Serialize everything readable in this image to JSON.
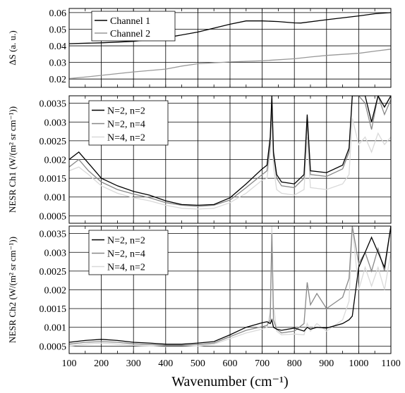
{
  "chart_data": [
    {
      "type": "line",
      "ylabel": "ΔS (a. u.)",
      "ylim": [
        0.015,
        0.0625
      ],
      "xlim": [
        100,
        1100
      ],
      "yticks": [
        0.02,
        0.03,
        0.04,
        0.05,
        0.06
      ],
      "ytick_labels": [
        "0.02",
        "0.03",
        "0.04",
        "0.05",
        "0.06"
      ],
      "grid": true,
      "legend": "upper-center",
      "series": [
        {
          "name": "Channel 1",
          "color": "#000000",
          "x": [
            100,
            200,
            300,
            400,
            500,
            600,
            650,
            700,
            750,
            800,
            820,
            900,
            1000,
            1050,
            1100
          ],
          "y": [
            0.0413,
            0.0418,
            0.0427,
            0.0448,
            0.0483,
            0.053,
            0.055,
            0.055,
            0.0546,
            0.0538,
            0.0537,
            0.0557,
            0.058,
            0.0593,
            0.06
          ]
        },
        {
          "name": "Channel 2",
          "color": "#999999",
          "x": [
            100,
            150,
            200,
            300,
            400,
            450,
            500,
            600,
            700,
            800,
            850,
            900,
            1000,
            1050,
            1100
          ],
          "y": [
            0.0203,
            0.0212,
            0.0222,
            0.0243,
            0.026,
            0.0278,
            0.0292,
            0.0303,
            0.031,
            0.0322,
            0.0333,
            0.0342,
            0.0355,
            0.0368,
            0.038
          ]
        }
      ]
    },
    {
      "type": "line",
      "ylabel": "NESR Ch1 (W/(m² sr cm⁻¹))",
      "ylim": [
        0.0003,
        0.0037
      ],
      "xlim": [
        100,
        1100
      ],
      "yticks": [
        0.0005,
        0.001,
        0.0015,
        0.002,
        0.0025,
        0.003,
        0.0035
      ],
      "ytick_labels": [
        "0.0005",
        "0.001",
        "0.0015",
        "0.002",
        "0.0025",
        "0.003",
        "0.0035"
      ],
      "grid": true,
      "legend": "upper-left",
      "series": [
        {
          "name": "N=2, n=2",
          "color": "#000000",
          "x": [
            100,
            130,
            160,
            200,
            250,
            300,
            350,
            400,
            450,
            500,
            550,
            600,
            650,
            700,
            715,
            725,
            730,
            735,
            745,
            760,
            800,
            830,
            840,
            850,
            900,
            950,
            970,
            980,
            1000,
            1020,
            1040,
            1060,
            1080,
            1100
          ],
          "y": [
            0.002,
            0.0022,
            0.0019,
            0.0015,
            0.0013,
            0.00115,
            0.00105,
            0.0009,
            0.0008,
            0.00078,
            0.0008,
            0.00098,
            0.00135,
            0.00175,
            0.00185,
            0.0026,
            0.0037,
            0.0022,
            0.0016,
            0.0014,
            0.00135,
            0.0016,
            0.0032,
            0.0017,
            0.00165,
            0.00185,
            0.0023,
            0.0037,
            0.0037,
            0.0037,
            0.003,
            0.0037,
            0.0034,
            0.0037
          ]
        },
        {
          "name": "N=2, n=4",
          "color": "#888888",
          "x": [
            100,
            130,
            160,
            200,
            250,
            300,
            350,
            400,
            450,
            500,
            550,
            600,
            650,
            700,
            715,
            725,
            730,
            735,
            745,
            760,
            800,
            830,
            840,
            850,
            900,
            950,
            970,
            980,
            1000,
            1020,
            1040,
            1060,
            1080,
            1100
          ],
          "y": [
            0.0018,
            0.002,
            0.0017,
            0.0014,
            0.0012,
            0.00108,
            0.00098,
            0.00085,
            0.00078,
            0.00075,
            0.00078,
            0.00092,
            0.00125,
            0.0016,
            0.0017,
            0.0024,
            0.0035,
            0.0021,
            0.0015,
            0.0013,
            0.00125,
            0.0015,
            0.003,
            0.0016,
            0.00155,
            0.00175,
            0.0022,
            0.0037,
            0.0037,
            0.0035,
            0.0028,
            0.0037,
            0.0032,
            0.0036
          ]
        },
        {
          "name": "N=4, n=2",
          "color": "#d9d9d9",
          "x": [
            100,
            130,
            160,
            200,
            250,
            300,
            350,
            400,
            450,
            500,
            550,
            600,
            650,
            700,
            715,
            725,
            730,
            735,
            745,
            760,
            800,
            830,
            840,
            850,
            900,
            950,
            970,
            980,
            1000,
            1020,
            1040,
            1060,
            1080,
            1100
          ],
          "y": [
            0.0017,
            0.0018,
            0.0016,
            0.0013,
            0.0011,
            0.00098,
            0.0009,
            0.00078,
            0.0007,
            0.00068,
            0.0007,
            0.00085,
            0.0011,
            0.00145,
            0.0015,
            0.0022,
            0.0033,
            0.0018,
            0.0012,
            0.0011,
            0.00105,
            0.0012,
            0.0026,
            0.00125,
            0.0012,
            0.00135,
            0.0016,
            0.0031,
            0.0024,
            0.0026,
            0.0022,
            0.0027,
            0.0024,
            0.0026
          ]
        }
      ]
    },
    {
      "type": "line",
      "ylabel": "NESR Ch2 (W/(m² sr cm⁻¹))",
      "ylim": [
        0.0003,
        0.0037
      ],
      "xlim": [
        100,
        1100
      ],
      "xlabel": "Wavenumber (cm⁻¹)",
      "xticks": [
        100,
        200,
        300,
        400,
        500,
        600,
        700,
        800,
        900,
        1000,
        1100
      ],
      "xtick_labels": [
        "100",
        "200",
        "300",
        "400",
        "500",
        "600",
        "700",
        "800",
        "900",
        "1000",
        "1100"
      ],
      "yticks": [
        0.0005,
        0.001,
        0.0015,
        0.002,
        0.0025,
        0.003,
        0.0035
      ],
      "ytick_labels": [
        "0.0005",
        "0.001",
        "0.0015",
        "0.002",
        "0.0025",
        "0.003",
        "0.0035"
      ],
      "grid": true,
      "legend": "upper-left",
      "series": [
        {
          "name": "N=2, n=2",
          "color": "#000000",
          "x": [
            100,
            150,
            200,
            250,
            300,
            350,
            400,
            450,
            500,
            550,
            600,
            650,
            700,
            715,
            725,
            730,
            735,
            745,
            760,
            800,
            830,
            840,
            850,
            870,
            900,
            950,
            970,
            980,
            1000,
            1020,
            1040,
            1060,
            1080,
            1100
          ],
          "y": [
            0.0006,
            0.00065,
            0.00068,
            0.00065,
            0.0006,
            0.00058,
            0.00055,
            0.00055,
            0.00058,
            0.00062,
            0.0008,
            0.001,
            0.00112,
            0.00115,
            0.0011,
            0.0012,
            0.001,
            0.00095,
            0.00092,
            0.00098,
            0.0009,
            0.001,
            0.00095,
            0.001,
            0.00098,
            0.0011,
            0.0012,
            0.0013,
            0.0026,
            0.003,
            0.0034,
            0.003,
            0.0026,
            0.0037
          ]
        },
        {
          "name": "N=2, n=4",
          "color": "#888888",
          "x": [
            100,
            150,
            200,
            250,
            300,
            350,
            400,
            450,
            500,
            550,
            600,
            650,
            700,
            715,
            725,
            730,
            735,
            745,
            760,
            800,
            830,
            840,
            850,
            870,
            900,
            950,
            970,
            980,
            1000,
            1020,
            1040,
            1060,
            1080,
            1100
          ],
          "y": [
            0.00055,
            0.0006,
            0.00062,
            0.0006,
            0.00056,
            0.00054,
            0.00052,
            0.00052,
            0.00054,
            0.00058,
            0.00075,
            0.00092,
            0.00102,
            0.00105,
            0.0012,
            0.0035,
            0.0012,
            0.00095,
            0.00085,
            0.0009,
            0.0011,
            0.0022,
            0.0016,
            0.0019,
            0.0015,
            0.0018,
            0.0023,
            0.0037,
            0.0027,
            0.003,
            0.0025,
            0.0031,
            0.0025,
            0.0037
          ]
        },
        {
          "name": "N=4, n=2",
          "color": "#d9d9d9",
          "x": [
            100,
            150,
            200,
            250,
            300,
            350,
            400,
            450,
            500,
            550,
            600,
            650,
            700,
            715,
            725,
            730,
            735,
            745,
            760,
            800,
            830,
            840,
            850,
            870,
            900,
            950,
            970,
            980,
            1000,
            1020,
            1040,
            1060,
            1080,
            1100
          ],
          "y": [
            0.0005,
            0.00055,
            0.00058,
            0.00055,
            0.00052,
            0.0005,
            0.00048,
            0.00048,
            0.0005,
            0.00055,
            0.0007,
            0.00085,
            0.00095,
            0.001,
            0.0014,
            0.0037,
            0.0016,
            0.0009,
            0.0008,
            0.00082,
            0.0008,
            0.0011,
            0.0009,
            0.0011,
            0.0009,
            0.0012,
            0.0017,
            0.0037,
            0.002,
            0.0026,
            0.0021,
            0.0026,
            0.002,
            0.003
          ]
        }
      ]
    }
  ]
}
